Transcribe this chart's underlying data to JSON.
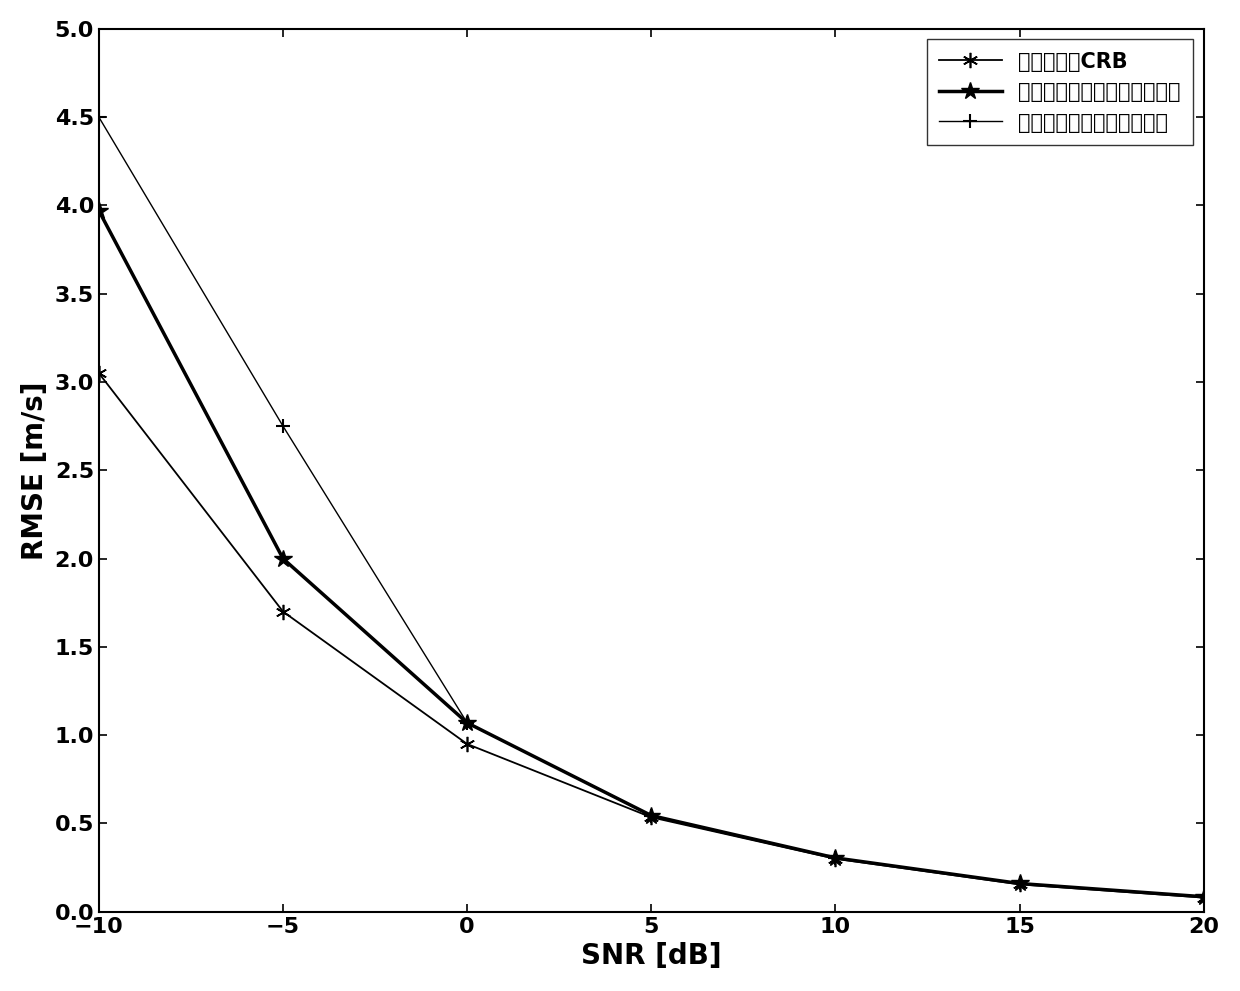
{
  "snr": [
    -10,
    -5,
    0,
    5,
    10,
    15,
    20
  ],
  "crb": [
    3.05,
    1.7,
    0.95,
    0.535,
    0.3,
    0.155,
    0.08
  ],
  "grid_search": [
    3.97,
    2.0,
    1.07,
    0.545,
    0.305,
    0.16,
    0.085
  ],
  "quasi_newton": [
    4.5,
    2.75,
    1.07,
    0.545,
    0.305,
    0.16,
    0.085
  ],
  "xlabel": "SNR [dB]",
  "ylabel": "RMSE [m/s]",
  "legend_crb": "目标速度的CRB",
  "legend_grid": "基于网格搜索的直接定位方法",
  "legend_quasi": "基于拟牛顿的直接定位方法",
  "xlim": [
    -10,
    20
  ],
  "ylim": [
    0,
    5
  ],
  "xticks": [
    -10,
    -5,
    0,
    5,
    10,
    15,
    20
  ],
  "yticks": [
    0,
    0.5,
    1.0,
    1.5,
    2.0,
    2.5,
    3.0,
    3.5,
    4.0,
    4.5,
    5.0
  ],
  "line_color": "#000000",
  "bg_color": "#ffffff",
  "axis_fontsize": 20,
  "tick_fontsize": 16,
  "legend_fontsize": 15
}
